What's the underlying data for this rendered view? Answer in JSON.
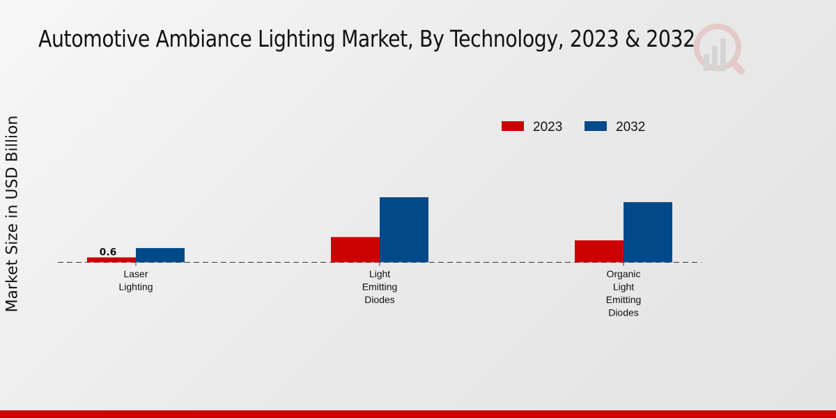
{
  "chart_data": {
    "type": "bar",
    "title": "Automotive Ambiance Lighting Market, By Technology, 2023 & 2032",
    "xlabel": "",
    "ylabel": "Market Size in USD Billion",
    "categories": [
      "Laser Lighting",
      "Light Emitting Diodes",
      "Organic Light Emitting Diodes"
    ],
    "category_lines": [
      [
        "Laser",
        "Lighting"
      ],
      [
        "Light",
        "Emitting",
        "Diodes"
      ],
      [
        "Organic",
        "Light",
        "Emitting",
        "Diodes"
      ]
    ],
    "series": [
      {
        "name": "2023",
        "color": "#cc0000",
        "values": [
          0.6,
          3.1,
          2.7
        ]
      },
      {
        "name": "2032",
        "color": "#004a8a",
        "values": [
          1.75,
          8.0,
          7.4
        ]
      }
    ],
    "data_labels": [
      {
        "series": "2023",
        "category": "Laser Lighting",
        "text": "0.6"
      }
    ],
    "ylim": [
      0,
      10
    ],
    "grid": false,
    "legend": "top-right"
  }
}
